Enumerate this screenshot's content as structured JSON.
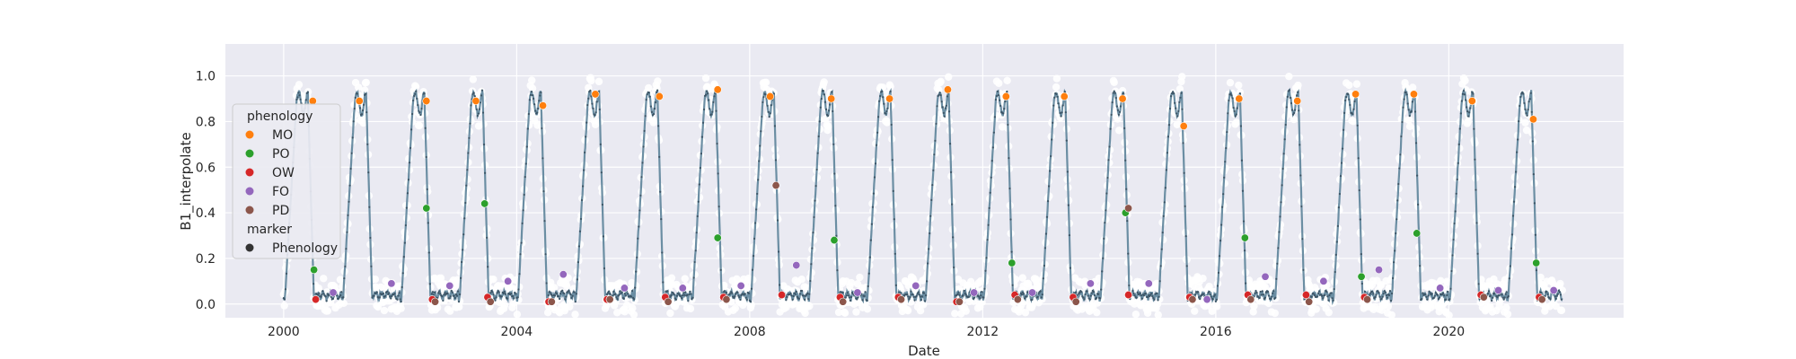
{
  "chart_data": {
    "type": "scatter",
    "xlabel": "Date",
    "ylabel": "B1_interpolate",
    "xlim": [
      1999.0,
      2023.0
    ],
    "ylim": [
      -0.06,
      1.14
    ],
    "grid": true,
    "legend_placement": "center-left",
    "xticks": [
      {
        "value": 2000,
        "label": "2000"
      },
      {
        "value": 2004,
        "label": "2004"
      },
      {
        "value": 2008,
        "label": "2008"
      },
      {
        "value": 2012,
        "label": "2012"
      },
      {
        "value": 2016,
        "label": "2016"
      },
      {
        "value": 2020,
        "label": "2020"
      }
    ],
    "yticks": [
      {
        "value": 0.0,
        "label": "0.0"
      },
      {
        "value": 0.2,
        "label": "0.2"
      },
      {
        "value": 0.4,
        "label": "0.4"
      },
      {
        "value": 0.6,
        "label": "0.6"
      },
      {
        "value": 0.8,
        "label": "0.8"
      },
      {
        "value": 1.0,
        "label": "1.0"
      }
    ],
    "legend": {
      "groups": [
        {
          "title": "phenology",
          "entries": [
            {
              "label": "MO",
              "color": "#ff7f0e"
            },
            {
              "label": "PO",
              "color": "#2ca02c"
            },
            {
              "label": "OW",
              "color": "#d62728"
            },
            {
              "label": "FO",
              "color": "#9467bd"
            },
            {
              "label": "PD",
              "color": "#8c564b"
            }
          ]
        },
        {
          "title": "marker",
          "entries": [
            {
              "label": "Phenology",
              "color": "#333333"
            }
          ]
        }
      ]
    },
    "colors": {
      "raw_points": "#ffffff",
      "interpolated_line": "#6b8ea3",
      "interpolated_markers": "#3d5566",
      "plot_background": "#eaeaf2",
      "grid": "#ffffff"
    },
    "series": [
      {
        "name": "MO",
        "color": "#ff7f0e",
        "x": [
          2000.5,
          2001.3,
          2002.45,
          2003.3,
          2004.45,
          2005.35,
          2006.45,
          2007.45,
          2008.35,
          2009.4,
          2010.4,
          2011.4,
          2012.4,
          2013.4,
          2014.4,
          2015.45,
          2016.4,
          2017.4,
          2018.4,
          2019.4,
          2020.4,
          2021.45
        ],
        "y": [
          0.89,
          0.89,
          0.89,
          0.89,
          0.87,
          0.92,
          0.91,
          0.94,
          0.91,
          0.9,
          0.9,
          0.94,
          0.91,
          0.91,
          0.9,
          0.78,
          0.9,
          0.89,
          0.92,
          0.92,
          0.89,
          0.81
        ]
      },
      {
        "name": "PO",
        "color": "#2ca02c",
        "x": [
          2000.52,
          2002.45,
          2003.45,
          2007.45,
          2009.45,
          2012.5,
          2014.45,
          2016.5,
          2018.5,
          2019.45,
          2021.5
        ],
        "y": [
          0.15,
          0.42,
          0.44,
          0.29,
          0.28,
          0.18,
          0.4,
          0.29,
          0.12,
          0.31,
          0.18
        ]
      },
      {
        "name": "OW",
        "color": "#d62728",
        "x": [
          2000.55,
          2002.55,
          2003.5,
          2004.55,
          2005.55,
          2006.55,
          2007.55,
          2008.55,
          2009.55,
          2010.55,
          2011.55,
          2012.55,
          2013.55,
          2014.5,
          2015.55,
          2016.55,
          2017.55,
          2018.55,
          2020.55,
          2021.55
        ],
        "y": [
          0.02,
          0.02,
          0.03,
          0.01,
          0.02,
          0.03,
          0.03,
          0.04,
          0.03,
          0.03,
          0.01,
          0.04,
          0.03,
          0.04,
          0.03,
          0.04,
          0.04,
          0.03,
          0.04,
          0.03
        ]
      },
      {
        "name": "FO",
        "color": "#9467bd",
        "x": [
          2000.85,
          2001.85,
          2002.85,
          2003.85,
          2004.8,
          2005.85,
          2006.85,
          2007.85,
          2008.8,
          2009.85,
          2010.85,
          2011.85,
          2012.85,
          2013.85,
          2014.85,
          2015.85,
          2016.85,
          2017.85,
          2018.8,
          2019.85,
          2020.85,
          2021.8
        ],
        "y": [
          0.05,
          0.09,
          0.08,
          0.1,
          0.13,
          0.07,
          0.07,
          0.08,
          0.17,
          0.05,
          0.08,
          0.05,
          0.05,
          0.09,
          0.09,
          0.02,
          0.12,
          0.1,
          0.15,
          0.07,
          0.06,
          0.06
        ]
      },
      {
        "name": "PD",
        "color": "#8c564b",
        "x": [
          2002.6,
          2003.55,
          2004.6,
          2005.6,
          2006.6,
          2007.6,
          2008.45,
          2009.6,
          2010.6,
          2011.6,
          2012.6,
          2013.6,
          2014.5,
          2015.6,
          2016.6,
          2017.6,
          2018.6,
          2020.6,
          2021.6
        ],
        "y": [
          0.01,
          0.01,
          0.01,
          0.02,
          0.01,
          0.02,
          0.52,
          0.01,
          0.02,
          0.01,
          0.02,
          0.01,
          0.42,
          0.02,
          0.02,
          0.01,
          0.02,
          0.03,
          0.02
        ]
      }
    ]
  }
}
